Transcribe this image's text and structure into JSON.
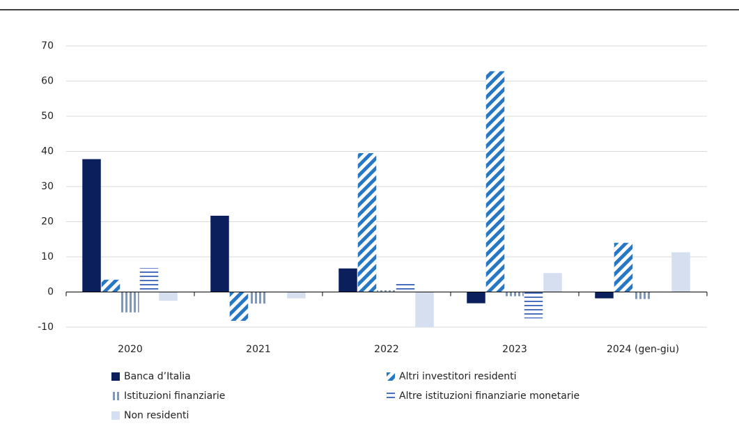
{
  "chart_data": {
    "type": "bar",
    "categories": [
      "2020",
      "2021",
      "2022",
      "2023",
      "2024 (gen-giu)"
    ],
    "series": [
      {
        "name": "Banca d’Italia",
        "color": "#0b1f5c",
        "pattern": "solid",
        "values": [
          37.8,
          21.7,
          6.7,
          -3.2,
          -1.8
        ]
      },
      {
        "name": "Altri investitori residenti",
        "color": "#2677c4",
        "pattern": "diagonal",
        "values": [
          3.5,
          -8.2,
          39.5,
          62.8,
          14.0
        ]
      },
      {
        "name": "Istituzioni finanziarie",
        "color": "#8497b0",
        "pattern": "vertical",
        "values": [
          -5.8,
          -3.3,
          0.5,
          -1.2,
          -2.0
        ]
      },
      {
        "name": "Altre istituzioni finanziarie monetarie",
        "color": "#4a6fc0",
        "pattern": "horizontal",
        "values": [
          6.8,
          0,
          2.6,
          -7.5,
          0
        ]
      },
      {
        "name": "Non residenti",
        "color": "#d6dff0",
        "pattern": "solid",
        "values": [
          -2.5,
          -1.8,
          -10,
          5.4,
          11.3
        ]
      }
    ],
    "ylim": [
      -10,
      70
    ],
    "yticks": [
      -10,
      0,
      10,
      20,
      30,
      40,
      50,
      60,
      70
    ],
    "grid": true
  }
}
